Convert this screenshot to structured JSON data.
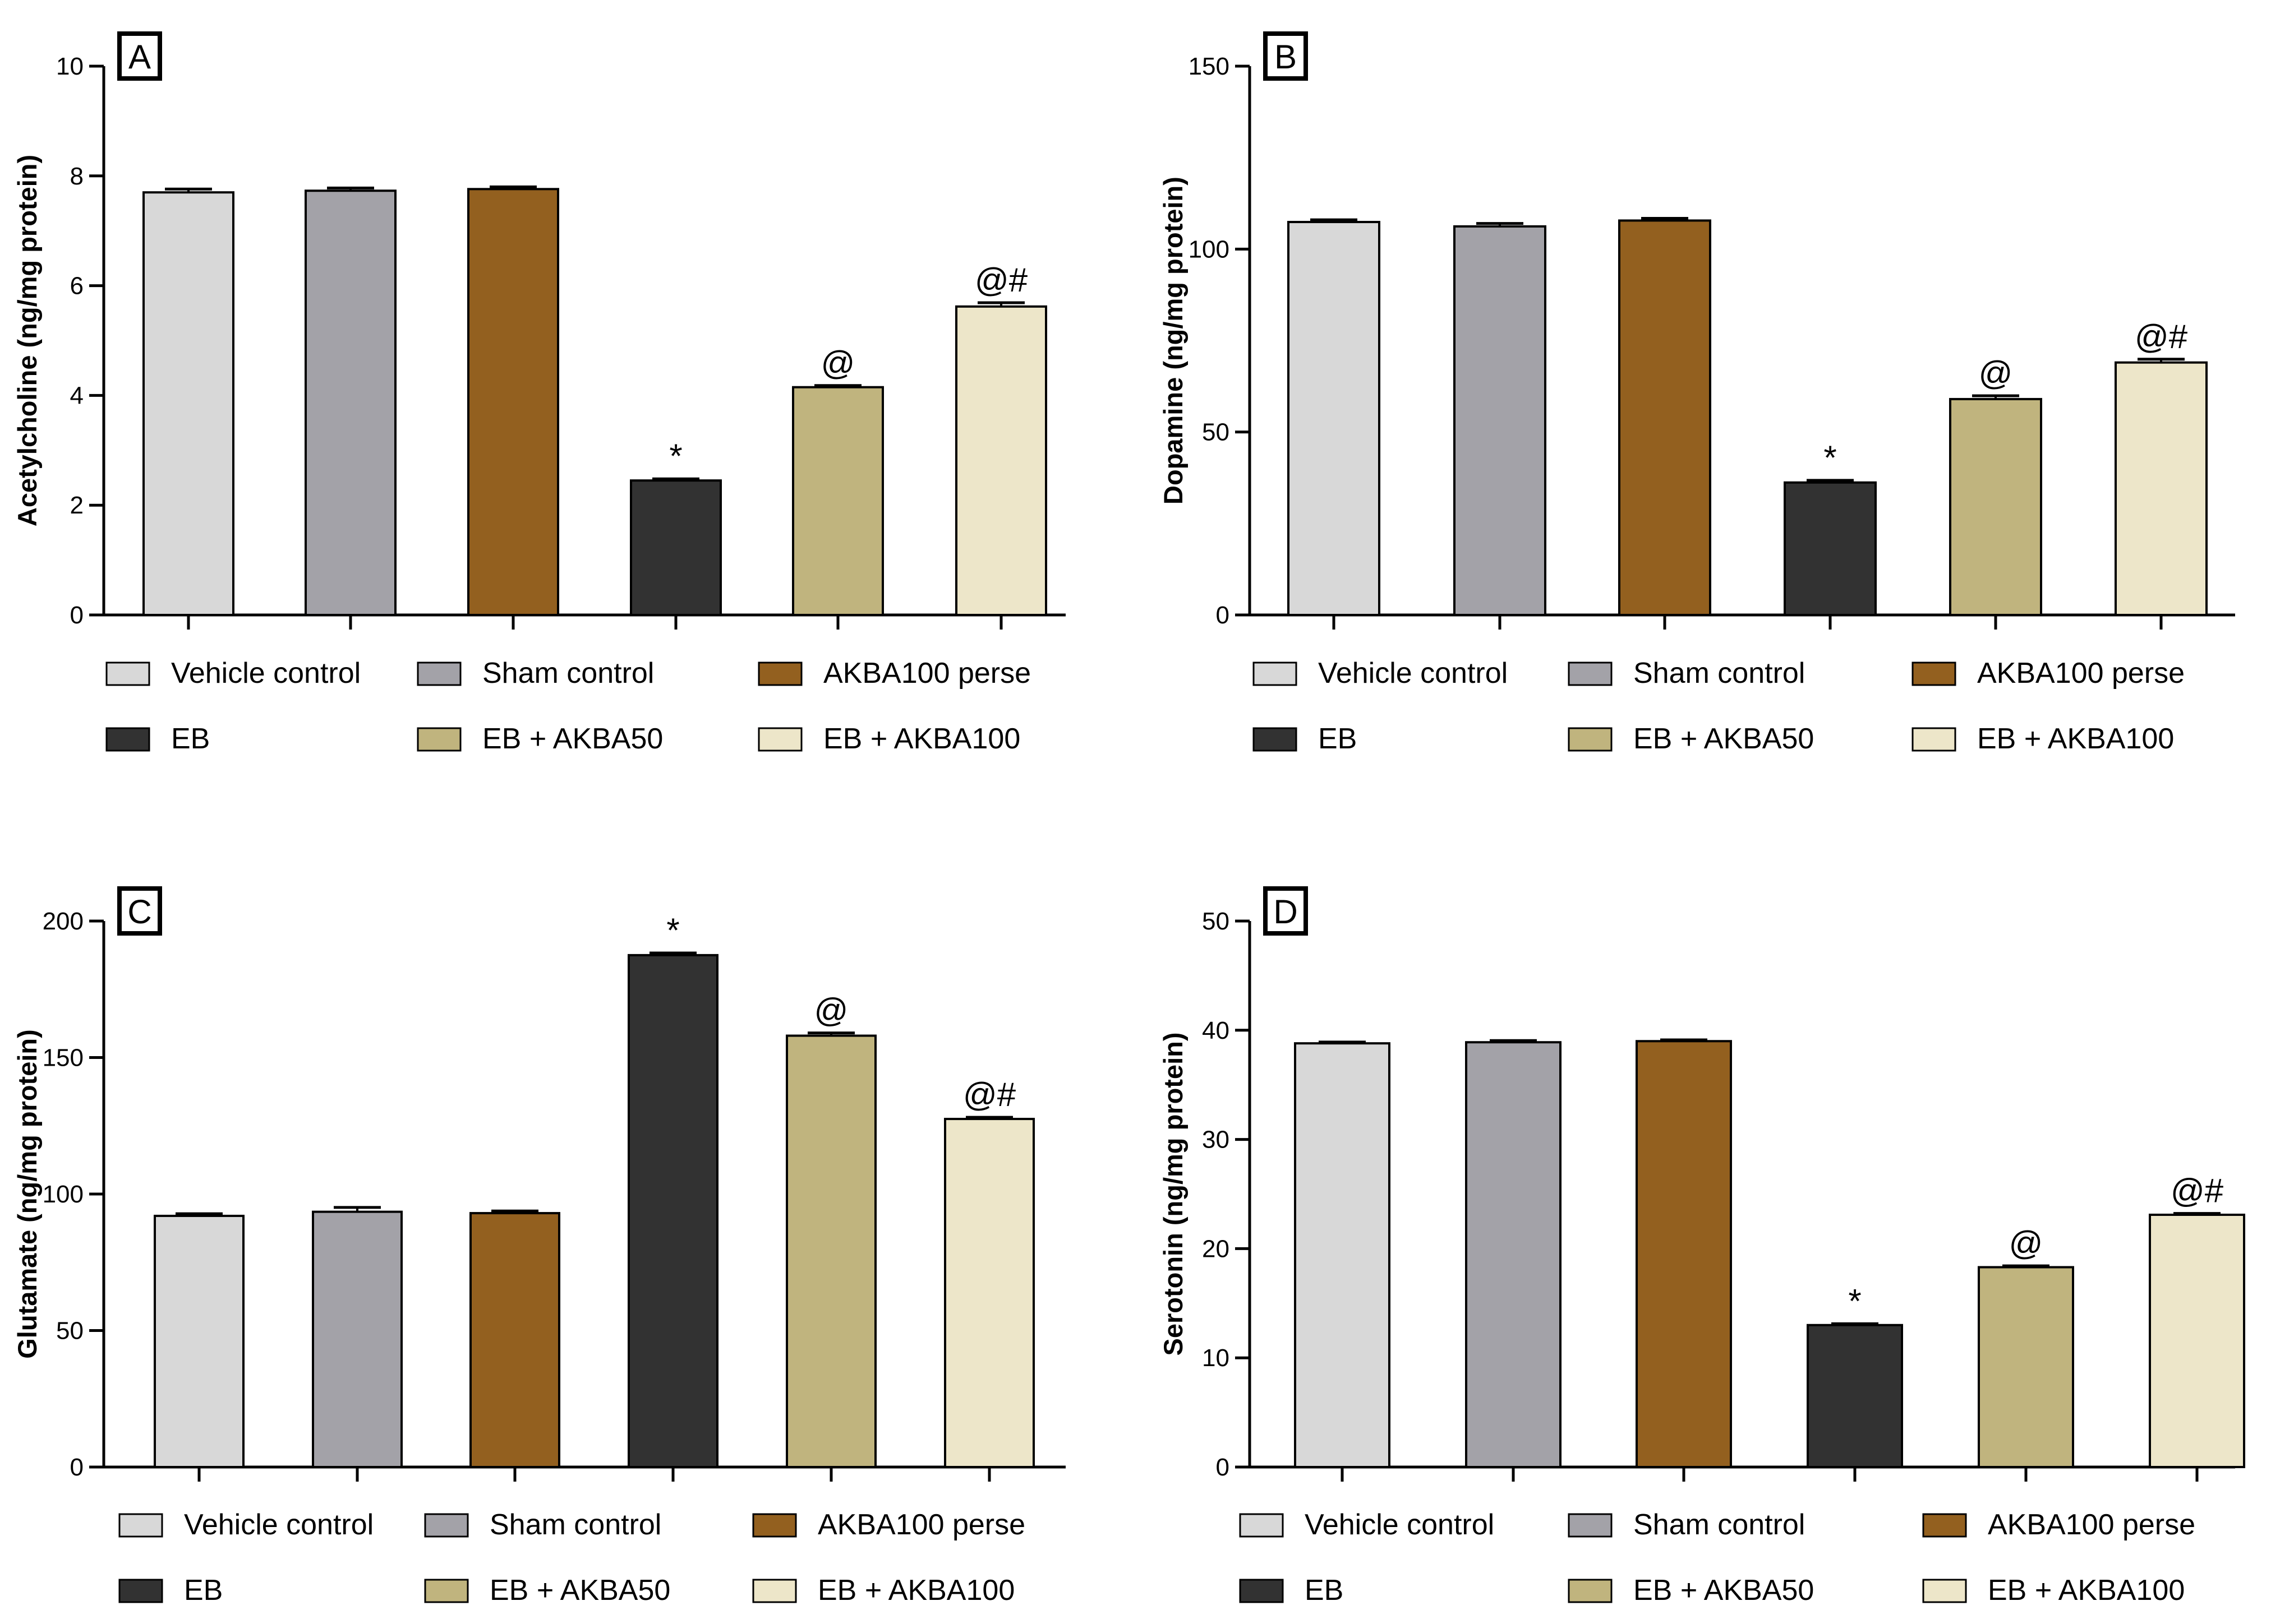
{
  "groups": [
    "Vehicle control",
    "Sham control",
    "AKBA100 perse",
    "EB",
    "EB + AKBA50",
    "EB + AKBA100"
  ],
  "colors": {
    "Vehicle control": "#d8d8d8",
    "Sham control": "#a3a2a8",
    "AKBA100 perse": "#93601f",
    "EB": "#323232",
    "EB + AKBA50": "#c0b47e",
    "EB + AKBA100": "#ede6c9"
  },
  "chart_data": [
    {
      "type": "bar",
      "panel": "A",
      "ylabel": "Acetylcholine (ng/mg protein)",
      "ylim": [
        0,
        10
      ],
      "yticks": [
        0,
        2,
        4,
        6,
        8,
        10
      ],
      "categories": [
        "Vehicle control",
        "Sham control",
        "AKBA100 perse",
        "EB",
        "EB + AKBA50",
        "EB + AKBA100"
      ],
      "values": [
        7.7,
        7.73,
        7.76,
        2.45,
        4.15,
        5.62
      ],
      "errors": [
        0.06,
        0.05,
        0.04,
        0.03,
        0.03,
        0.07
      ],
      "annotations": [
        "",
        "",
        "",
        "*",
        "@",
        "@#"
      ],
      "legend": [
        "Vehicle control",
        "Sham control",
        "AKBA100 perse",
        "EB",
        "EB + AKBA50",
        "EB + AKBA100"
      ]
    },
    {
      "type": "bar",
      "panel": "B",
      "ylabel": "Dopamine (ng/mg protein)",
      "ylim": [
        0,
        150
      ],
      "yticks": [
        0,
        50,
        100,
        150
      ],
      "categories": [
        "Vehicle control",
        "Sham control",
        "AKBA100 perse",
        "EB",
        "EB + AKBA50",
        "EB + AKBA100"
      ],
      "values": [
        107.4,
        106.2,
        107.8,
        36.2,
        59,
        69
      ],
      "errors": [
        0.6,
        0.8,
        0.6,
        0.6,
        0.9,
        0.9
      ],
      "annotations": [
        "",
        "",
        "",
        "*",
        "@",
        "@#"
      ],
      "legend": [
        "Vehicle control",
        "Sham control",
        "AKBA100 perse",
        "EB",
        "EB + AKBA50",
        "EB + AKBA100"
      ]
    },
    {
      "type": "bar",
      "panel": "C",
      "ylabel": "Glutamate (ng/mg protein)",
      "ylim": [
        0,
        200
      ],
      "yticks": [
        0,
        50,
        100,
        150,
        200
      ],
      "categories": [
        "Vehicle control",
        "Sham control",
        "AKBA100 perse",
        "EB",
        "EB + AKBA50",
        "EB + AKBA100"
      ],
      "values": [
        92,
        93.5,
        93,
        187.5,
        158,
        127.5
      ],
      "errors": [
        0.8,
        1.6,
        0.8,
        0.8,
        1.0,
        0.6
      ],
      "annotations": [
        "",
        "",
        "",
        "*",
        "@",
        "@#"
      ],
      "legend": [
        "Vehicle control",
        "Sham control",
        "AKBA100 perse",
        "EB",
        "EB + AKBA50",
        "EB + AKBA100"
      ]
    },
    {
      "type": "bar",
      "panel": "D",
      "ylabel": "Serotonin (ng/mg protein)",
      "ylim": [
        0,
        50
      ],
      "yticks": [
        0,
        10,
        20,
        30,
        40,
        50
      ],
      "categories": [
        "Vehicle control",
        "Sham control",
        "AKBA100 perse",
        "EB",
        "EB + AKBA50",
        "EB + AKBA100"
      ],
      "values": [
        38.8,
        38.9,
        39,
        13,
        18.3,
        23.1
      ],
      "errors": [
        0.12,
        0.15,
        0.12,
        0.12,
        0.12,
        0.12
      ],
      "annotations": [
        "",
        "",
        "",
        "*",
        "@",
        "@#"
      ],
      "legend": [
        "Vehicle control",
        "Sham control",
        "AKBA100 perse",
        "EB",
        "EB + AKBA50",
        "EB + AKBA100"
      ]
    }
  ]
}
